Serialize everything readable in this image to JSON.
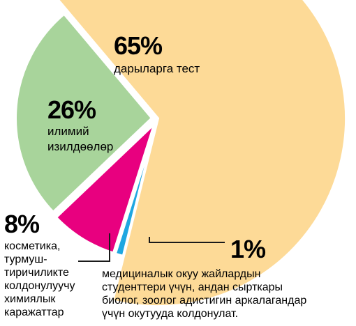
{
  "chart_data": {
    "type": "pie",
    "slices": [
      {
        "percent": 65,
        "percent_label": "65%",
        "label_lines": [
          "дарыларга тест"
        ],
        "color": "#FDDA97"
      },
      {
        "percent": 26,
        "percent_label": "26%",
        "label_lines": [
          "илимий",
          "изилдөөлөр"
        ],
        "color": "#A8D49B"
      },
      {
        "percent": 8,
        "percent_label": "8%",
        "label_lines": [
          "косметика,",
          "турмуш-",
          "тиричиликте",
          "колдонулуучу",
          "химиялык",
          "каражаттар"
        ],
        "color": "#E8007F"
      },
      {
        "percent": 1,
        "percent_label": "1%",
        "label_lines": [
          "медициналык окуу жайлардын",
          "студенттери үчүн, андан сырткары",
          "биолог, зоолог адистигин аркалагандар",
          "үчүн окутууда колдонулат."
        ],
        "color": "#1EA7E1"
      }
    ],
    "leader_color": "#1a1a1a"
  }
}
